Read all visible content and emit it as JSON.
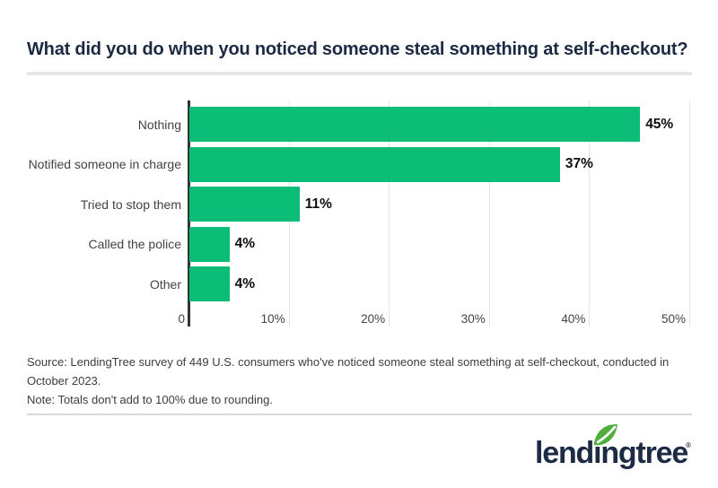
{
  "title": "What did you do when you noticed someone steal something at self-checkout?",
  "chart_data": {
    "type": "bar",
    "orientation": "horizontal",
    "title": "What did you do when you noticed someone steal something at self-checkout?",
    "categories": [
      "Nothing",
      "Notified someone in charge",
      "Tried to stop them",
      "Called the police",
      "Other"
    ],
    "values": [
      45,
      37,
      11,
      4,
      4
    ],
    "value_labels": [
      "45%",
      "37%",
      "11%",
      "4%",
      "4%"
    ],
    "xlabel": "",
    "ylabel": "",
    "xlim": [
      0,
      50
    ],
    "ticks": [
      {
        "label": "0",
        "value": 0
      },
      {
        "label": "10%",
        "value": 10
      },
      {
        "label": "20%",
        "value": 20
      },
      {
        "label": "30%",
        "value": 30
      },
      {
        "label": "40%",
        "value": 40
      },
      {
        "label": "50%",
        "value": 50
      }
    ],
    "grid": true,
    "legend": false,
    "bar_color": "#0bbd76",
    "axis_color": "#333333",
    "gridline_color": "#e6e6e6"
  },
  "footnotes": {
    "source": "Source: LendingTree survey of 449 U.S. consumers who've noticed someone steal something at self-checkout, conducted in October 2023.",
    "note": "Note: Totals don't add to 100% due to rounding."
  },
  "branding": {
    "logo_text": "lendingtree",
    "trademark": "®",
    "leaf_icon": "leaf-icon",
    "logo_color": "#1d2b44",
    "leaf_color": "#4fae3d"
  }
}
